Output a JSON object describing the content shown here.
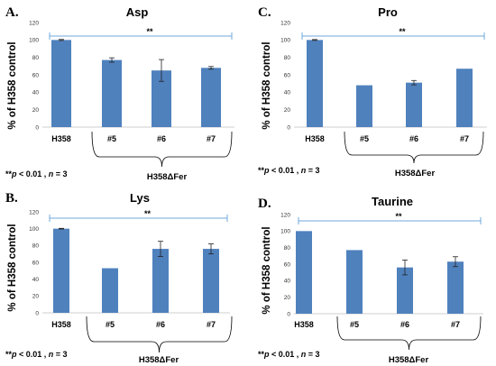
{
  "chart_data": [
    {
      "type": "bar",
      "panel": "A.",
      "title": "Asp",
      "ylabel": "% of H358 control",
      "ylim": [
        0,
        120
      ],
      "yticks": [
        "0",
        "20",
        "40",
        "60",
        "80",
        "100",
        "120"
      ],
      "categories": [
        "H358",
        "#5",
        "#6",
        "#7"
      ],
      "values": [
        100,
        77,
        65,
        68
      ],
      "errors": [
        0.6,
        2.5,
        12.5,
        1.5
      ],
      "significance": "**",
      "group_label": "H358ΔFer",
      "stat_note": "**p < 0.01 , n = 3"
    },
    {
      "type": "bar",
      "panel": "C.",
      "title": "Pro",
      "ylabel": "% of H358 control",
      "ylim": [
        0,
        120
      ],
      "yticks": [
        "0",
        "20",
        "40",
        "60",
        "80",
        "100",
        "120"
      ],
      "categories": [
        "H358",
        "#5",
        "#6",
        "#7"
      ],
      "values": [
        100,
        48,
        51,
        67
      ],
      "errors": [
        0.5,
        0,
        2.5,
        0
      ],
      "significance": "**",
      "group_label": "H358ΔFer",
      "stat_note": "**p < 0.01 , n = 3"
    },
    {
      "type": "bar",
      "panel": "B.",
      "title": "Lys",
      "ylabel": "% of H358 control",
      "ylim": [
        0,
        120
      ],
      "yticks": [
        "0",
        "20",
        "40",
        "60",
        "80",
        "100",
        "120"
      ],
      "categories": [
        "H358",
        "#5",
        "#6",
        "#7"
      ],
      "values": [
        100,
        53,
        76,
        76
      ],
      "errors": [
        0.4,
        0,
        9,
        6
      ],
      "significance": "**",
      "group_label": "H358ΔFer",
      "stat_note": "**p < 0.01 , n = 3"
    },
    {
      "type": "bar",
      "panel": "D.",
      "title": "Taurine",
      "ylabel": "% of H358 control",
      "ylim": [
        0,
        120
      ],
      "yticks": [
        "0",
        "20",
        "40",
        "60",
        "80",
        "100",
        "120"
      ],
      "categories": [
        "H358",
        "#5",
        "#6",
        "#7"
      ],
      "values": [
        100,
        77,
        56,
        63
      ],
      "errors": [
        0,
        0,
        9,
        6
      ],
      "significance": "**",
      "group_label": "H358ΔFer",
      "stat_note": "**p < 0.01 , n = 3"
    }
  ]
}
